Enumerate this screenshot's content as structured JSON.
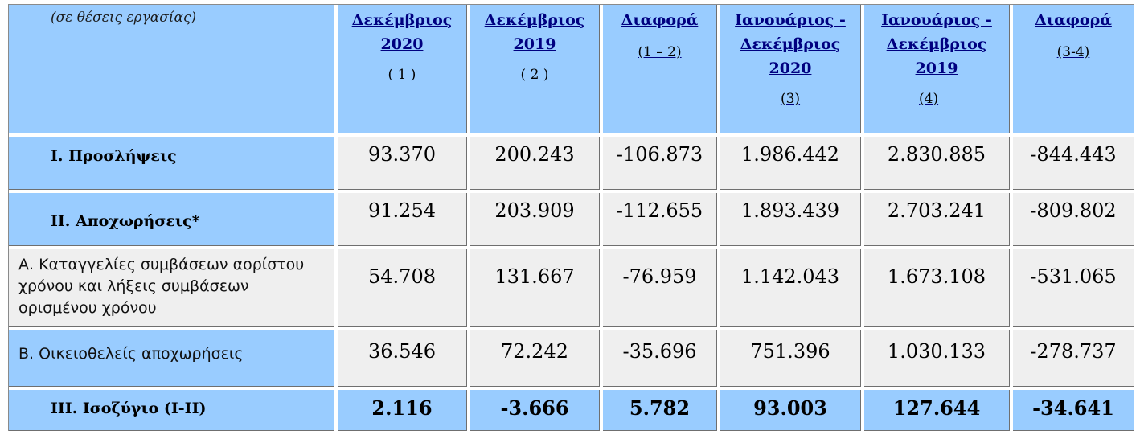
{
  "table": {
    "note": "(σε θέσεις εργασίας)",
    "headers": [
      {
        "lines": [
          "Δεκέμβριος",
          "2020"
        ],
        "index": "( 1 )"
      },
      {
        "lines": [
          "Δεκέμβριος",
          "2019"
        ],
        "index": "( 2 )"
      },
      {
        "lines": [
          "Διαφορά"
        ],
        "index": "(1 – 2)"
      },
      {
        "lines": [
          "Ιανουάριος -",
          "Δεκέμβριος",
          "2020"
        ],
        "index": "(3)"
      },
      {
        "lines": [
          "Ιανουάριος -",
          "Δεκέμβριος",
          "2019"
        ],
        "index": "(4)"
      },
      {
        "lines": [
          "Διαφορά"
        ],
        "index": "(3-4)"
      }
    ],
    "rows": [
      {
        "label": "I. Προσλήψεις",
        "values": [
          "93.370",
          "200.243",
          "-106.873",
          "1.986.442",
          "2.830.885",
          "-844.443"
        ]
      },
      {
        "label": "II. Αποχωρήσεις*",
        "values": [
          "91.254",
          "203.909",
          "-112.655",
          "1.893.439",
          "2.703.241",
          "-809.802"
        ]
      },
      {
        "label_lines": [
          "Α. Καταγγελίες συμβάσεων αορίστου",
          "χρόνου  και λήξεις συμβάσεων",
          "ορισμένου χρόνου"
        ],
        "values": [
          "54.708",
          "131.667",
          "-76.959",
          "1.142.043",
          "1.673.108",
          "-531.065"
        ]
      },
      {
        "label": "Β. Οικειοθελείς  αποχωρήσεις",
        "values": [
          "36.546",
          "72.242",
          "-35.696",
          "751.396",
          "1.030.133",
          "-278.737"
        ]
      },
      {
        "label": "III. Ισοζύγιο (I-II)",
        "values": [
          "2.116",
          "-3.666",
          "5.782",
          "93.003",
          "127.644",
          "-34.641"
        ]
      }
    ]
  }
}
